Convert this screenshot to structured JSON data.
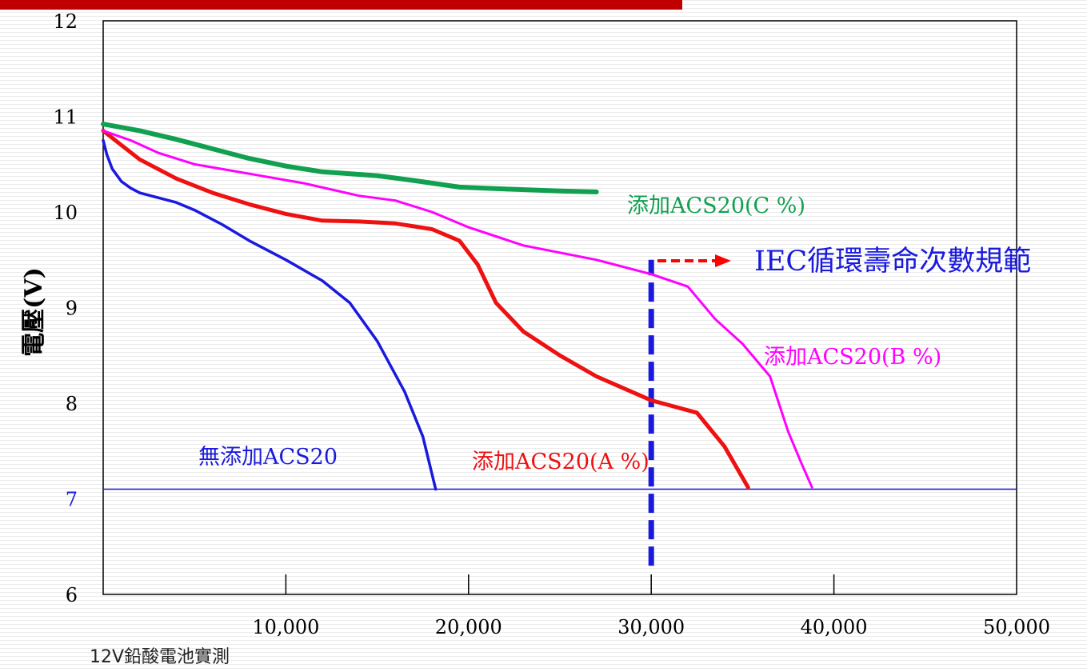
{
  "chart_data": {
    "type": "line",
    "ylabel": "電壓(V)",
    "xlabel": "",
    "xlim": [
      0,
      50000
    ],
    "ylim": [
      6,
      12
    ],
    "x_ticks": [
      10000,
      20000,
      30000,
      40000,
      50000
    ],
    "x_tick_labels": [
      "10,000",
      "20,000",
      "30,000",
      "40,000",
      "50,000"
    ],
    "y_ticks": [
      6,
      7,
      8,
      9,
      10,
      11,
      12
    ],
    "y_tick_labels": [
      "6",
      "7",
      "8",
      "9",
      "10",
      "11",
      "12"
    ],
    "grid": false,
    "series": [
      {
        "name": "無添加ACS20",
        "color": "#1a1adf",
        "x": [
          0,
          200,
          500,
          1000,
          1500,
          2000,
          3000,
          4000,
          5000,
          6500,
          8000,
          10000,
          12000,
          13500,
          15000,
          16500,
          17500,
          18200
        ],
        "y": [
          10.75,
          10.6,
          10.45,
          10.32,
          10.25,
          10.2,
          10.15,
          10.1,
          10.02,
          9.87,
          9.7,
          9.5,
          9.28,
          9.05,
          8.65,
          8.12,
          7.65,
          7.1
        ]
      },
      {
        "name": "添加ACS20(A %)",
        "color": "#ee1111",
        "x": [
          0,
          1000,
          2000,
          4000,
          6000,
          8000,
          10000,
          12000,
          14000,
          16000,
          18000,
          19500,
          20500,
          21500,
          23000,
          25000,
          27000,
          30000,
          32500,
          34000,
          35300
        ],
        "y": [
          10.85,
          10.7,
          10.55,
          10.35,
          10.2,
          10.08,
          9.98,
          9.91,
          9.9,
          9.88,
          9.82,
          9.7,
          9.45,
          9.05,
          8.75,
          8.5,
          8.28,
          8.03,
          7.9,
          7.55,
          7.12
        ]
      },
      {
        "name": "添加ACS20(B %)",
        "color": "#ff00ff",
        "x": [
          0,
          1500,
          3000,
          5000,
          8000,
          11000,
          14000,
          16000,
          18000,
          20000,
          23000,
          27000,
          30000,
          32000,
          33500,
          35000,
          36500,
          37500,
          38200,
          38800
        ],
        "y": [
          10.85,
          10.75,
          10.62,
          10.5,
          10.4,
          10.3,
          10.17,
          10.12,
          10.0,
          9.84,
          9.65,
          9.5,
          9.35,
          9.22,
          8.88,
          8.62,
          8.28,
          7.7,
          7.38,
          7.12
        ]
      },
      {
        "name": "添加ACS20(C %)",
        "color": "#11a050",
        "x": [
          0,
          2000,
          4000,
          6000,
          8000,
          10000,
          12000,
          15000,
          17000,
          19500,
          22000,
          25000,
          27000
        ],
        "y": [
          10.92,
          10.85,
          10.76,
          10.66,
          10.56,
          10.48,
          10.42,
          10.38,
          10.33,
          10.26,
          10.24,
          10.22,
          10.21
        ]
      }
    ],
    "reference_lines": [
      {
        "type": "horizontal",
        "y": 7.1,
        "color": "#1a1adf"
      },
      {
        "type": "vertical",
        "x": 30000,
        "y_from": 6.3,
        "y_to": 9.5,
        "color": "#1a1adf"
      }
    ],
    "annotations": [
      {
        "text": "IEC循環壽命次數規範",
        "color": "#1a1adf",
        "arrow_color": "#ff0000"
      }
    ]
  },
  "caption": "12V鉛酸電池實測",
  "colors": {
    "top_bar": "#c00000",
    "highlight_tick": "#1a1adf"
  }
}
